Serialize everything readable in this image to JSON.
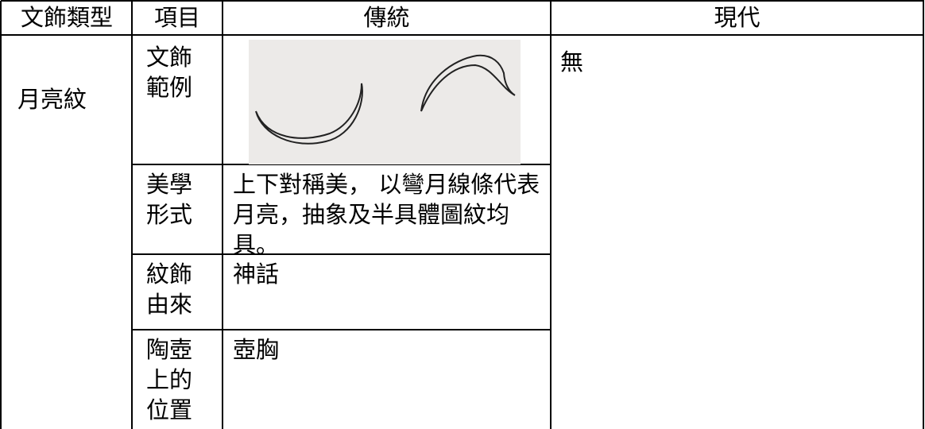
{
  "table": {
    "header": [
      "文飾類型",
      "項目",
      "傳統",
      "現代"
    ],
    "pattern": "月亮紋",
    "modern": "無",
    "rows": [
      {
        "item": "文飾範例"
      },
      {
        "item": "美學形式",
        "traditional": "上下對稱美， 以彎月線條代表月亮，抽象及半具體圖紋均具。"
      },
      {
        "item": "紋飾由來",
        "traditional": "神話"
      },
      {
        "item": "陶壺上的位置",
        "traditional": "壺胸"
      }
    ]
  }
}
